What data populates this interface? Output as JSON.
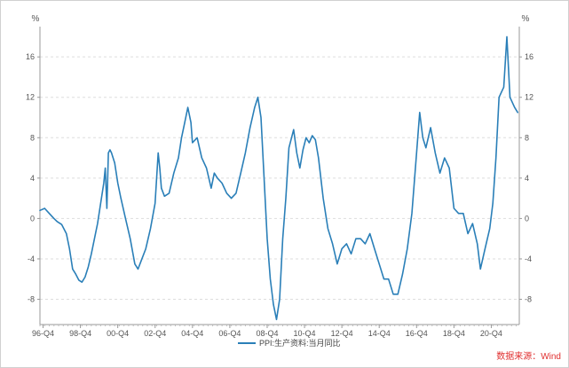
{
  "chart_data": {
    "type": "line",
    "y_unit_left": "%",
    "y_unit_right": "%",
    "ylim": [
      -10.5,
      19
    ],
    "yticks": [
      -8,
      -4,
      0,
      4,
      8,
      12,
      16
    ],
    "ytick_labels": [
      "-8",
      "-4",
      "0",
      "4",
      "8",
      "12",
      "16"
    ],
    "xlim": [
      "1996-10",
      "2022-06"
    ],
    "xticks": [
      {
        "date": "1996-12",
        "label": "96-Q4"
      },
      {
        "date": "1998-12",
        "label": "98-Q4"
      },
      {
        "date": "2000-12",
        "label": "00-Q4"
      },
      {
        "date": "2002-12",
        "label": "02-Q4"
      },
      {
        "date": "2004-12",
        "label": "04-Q4"
      },
      {
        "date": "2006-12",
        "label": "06-Q4"
      },
      {
        "date": "2008-12",
        "label": "08-Q4"
      },
      {
        "date": "2010-12",
        "label": "10-Q4"
      },
      {
        "date": "2012-12",
        "label": "12-Q4"
      },
      {
        "date": "2014-12",
        "label": "14-Q4"
      },
      {
        "date": "2016-12",
        "label": "16-Q4"
      },
      {
        "date": "2018-12",
        "label": "18-Q4"
      },
      {
        "date": "2020-12",
        "label": "20-Q4"
      }
    ],
    "grid": "horizontal dashed",
    "legend_position": "bottom-center",
    "color": "#2a7fb8",
    "source": "数据来源：Wind",
    "series": [
      {
        "name": "PPI:生产资料:当月同比",
        "points": [
          [
            "1996-10",
            0.8
          ],
          [
            "1997-01",
            1.0
          ],
          [
            "1997-04",
            0.5
          ],
          [
            "1997-07",
            0.0
          ],
          [
            "1997-09",
            -0.3
          ],
          [
            "1997-12",
            -0.6
          ],
          [
            "1998-03",
            -1.5
          ],
          [
            "1998-05",
            -3.0
          ],
          [
            "1998-07",
            -5.0
          ],
          [
            "1998-09",
            -5.5
          ],
          [
            "1998-11",
            -6.1
          ],
          [
            "1999-01",
            -6.3
          ],
          [
            "1999-03",
            -5.8
          ],
          [
            "1999-05",
            -4.8
          ],
          [
            "1999-07",
            -3.5
          ],
          [
            "1999-09",
            -2.0
          ],
          [
            "1999-11",
            -0.5
          ],
          [
            "2000-01",
            1.5
          ],
          [
            "2000-03",
            3.5
          ],
          [
            "2000-04",
            5.0
          ],
          [
            "2000-05",
            1.0
          ],
          [
            "2000-06",
            6.5
          ],
          [
            "2000-07",
            6.8
          ],
          [
            "2000-08",
            6.5
          ],
          [
            "2000-10",
            5.5
          ],
          [
            "2000-12",
            3.5
          ],
          [
            "2001-02",
            2.0
          ],
          [
            "2001-05",
            0.0
          ],
          [
            "2001-08",
            -2.0
          ],
          [
            "2001-11",
            -4.5
          ],
          [
            "2002-01",
            -5.0
          ],
          [
            "2002-03",
            -4.2
          ],
          [
            "2002-06",
            -3.0
          ],
          [
            "2002-09",
            -1.0
          ],
          [
            "2002-12",
            1.5
          ],
          [
            "2003-02",
            6.5
          ],
          [
            "2003-03",
            5.0
          ],
          [
            "2003-04",
            3.0
          ],
          [
            "2003-06",
            2.2
          ],
          [
            "2003-09",
            2.5
          ],
          [
            "2003-12",
            4.5
          ],
          [
            "2004-03",
            6.0
          ],
          [
            "2004-05",
            8.0
          ],
          [
            "2004-07",
            9.5
          ],
          [
            "2004-09",
            11.0
          ],
          [
            "2004-11",
            9.5
          ],
          [
            "2004-12",
            7.5
          ],
          [
            "2005-03",
            8.0
          ],
          [
            "2005-06",
            6.0
          ],
          [
            "2005-09",
            5.0
          ],
          [
            "2005-12",
            3.0
          ],
          [
            "2006-02",
            4.5
          ],
          [
            "2006-04",
            4.0
          ],
          [
            "2006-07",
            3.5
          ],
          [
            "2006-10",
            2.5
          ],
          [
            "2007-01",
            2.0
          ],
          [
            "2007-04",
            2.5
          ],
          [
            "2007-07",
            4.5
          ],
          [
            "2007-10",
            6.5
          ],
          [
            "2008-01",
            9.0
          ],
          [
            "2008-04",
            11.0
          ],
          [
            "2008-06",
            12.0
          ],
          [
            "2008-08",
            10.0
          ],
          [
            "2008-10",
            4.0
          ],
          [
            "2008-12",
            -2.0
          ],
          [
            "2009-02",
            -6.0
          ],
          [
            "2009-04",
            -8.5
          ],
          [
            "2009-06",
            -10.0
          ],
          [
            "2009-08",
            -8.0
          ],
          [
            "2009-10",
            -2.0
          ],
          [
            "2009-12",
            2.0
          ],
          [
            "2010-02",
            7.0
          ],
          [
            "2010-05",
            8.8
          ],
          [
            "2010-07",
            6.5
          ],
          [
            "2010-09",
            5.0
          ],
          [
            "2010-11",
            6.8
          ],
          [
            "2011-01",
            8.0
          ],
          [
            "2011-03",
            7.5
          ],
          [
            "2011-05",
            8.2
          ],
          [
            "2011-07",
            7.8
          ],
          [
            "2011-09",
            6.0
          ],
          [
            "2011-12",
            2.0
          ],
          [
            "2012-03",
            -1.0
          ],
          [
            "2012-06",
            -2.5
          ],
          [
            "2012-09",
            -4.5
          ],
          [
            "2012-12",
            -3.0
          ],
          [
            "2013-03",
            -2.5
          ],
          [
            "2013-06",
            -3.5
          ],
          [
            "2013-09",
            -2.0
          ],
          [
            "2013-12",
            -2.0
          ],
          [
            "2014-03",
            -2.5
          ],
          [
            "2014-06",
            -1.5
          ],
          [
            "2014-09",
            -3.0
          ],
          [
            "2014-12",
            -4.5
          ],
          [
            "2015-03",
            -6.0
          ],
          [
            "2015-06",
            -6.0
          ],
          [
            "2015-09",
            -7.5
          ],
          [
            "2015-12",
            -7.5
          ],
          [
            "2016-03",
            -5.5
          ],
          [
            "2016-06",
            -3.0
          ],
          [
            "2016-09",
            0.5
          ],
          [
            "2016-12",
            6.5
          ],
          [
            "2017-02",
            10.5
          ],
          [
            "2017-04",
            8.0
          ],
          [
            "2017-06",
            7.0
          ],
          [
            "2017-09",
            9.0
          ],
          [
            "2017-12",
            6.5
          ],
          [
            "2018-03",
            4.5
          ],
          [
            "2018-06",
            6.0
          ],
          [
            "2018-09",
            5.0
          ],
          [
            "2018-12",
            1.0
          ],
          [
            "2019-03",
            0.5
          ],
          [
            "2019-06",
            0.5
          ],
          [
            "2019-09",
            -1.5
          ],
          [
            "2019-12",
            -0.5
          ],
          [
            "2020-03",
            -2.5
          ],
          [
            "2020-05",
            -5.0
          ],
          [
            "2020-08",
            -3.0
          ],
          [
            "2020-11",
            -1.0
          ],
          [
            "2021-01",
            1.5
          ],
          [
            "2021-03",
            6.0
          ],
          [
            "2021-05",
            12.0
          ],
          [
            "2021-08",
            13.0
          ],
          [
            "2021-10",
            18.0
          ],
          [
            "2021-12",
            12.0
          ],
          [
            "2022-03",
            11.0
          ],
          [
            "2022-05",
            10.5
          ]
        ]
      }
    ]
  }
}
